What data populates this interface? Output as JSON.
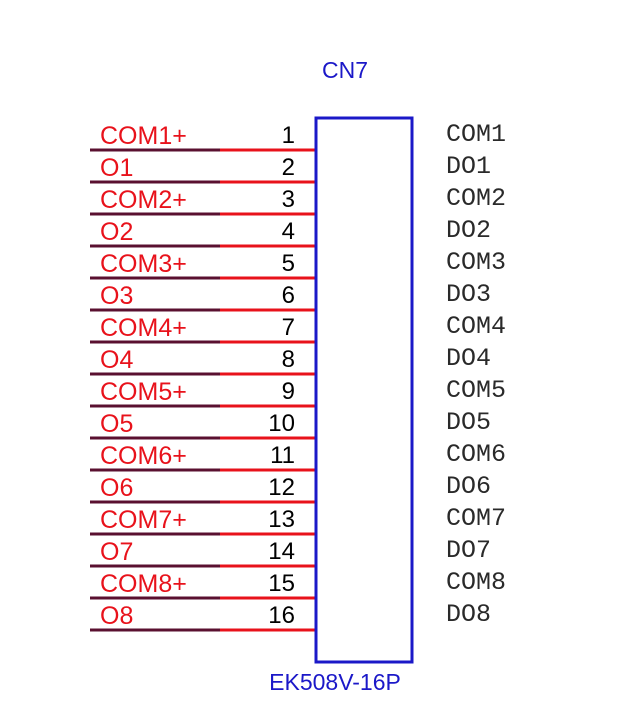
{
  "connector": {
    "designator": "CN7",
    "part_number": "EK508V-16P"
  },
  "colors": {
    "net_label": "#e8121b",
    "pin_number": "#000000",
    "pin_name": "#2a2a2a",
    "body_outline": "#1b18c8",
    "designator": "#1b18c8",
    "wire_dark": "#5a1030",
    "wire_red": "#e8121b"
  },
  "pins": [
    {
      "number": "1",
      "net": "COM1+",
      "name": "COM1"
    },
    {
      "number": "2",
      "net": "O1",
      "name": "DO1"
    },
    {
      "number": "3",
      "net": "COM2+",
      "name": "COM2"
    },
    {
      "number": "4",
      "net": "O2",
      "name": "DO2"
    },
    {
      "number": "5",
      "net": "COM3+",
      "name": "COM3"
    },
    {
      "number": "6",
      "net": "O3",
      "name": "DO3"
    },
    {
      "number": "7",
      "net": "COM4+",
      "name": "COM4"
    },
    {
      "number": "8",
      "net": "O4",
      "name": "DO4"
    },
    {
      "number": "9",
      "net": "COM5+",
      "name": "COM5"
    },
    {
      "number": "10",
      "net": "O5",
      "name": "DO5"
    },
    {
      "number": "11",
      "net": "COM6+",
      "name": "COM6"
    },
    {
      "number": "12",
      "net": "O6",
      "name": "DO6"
    },
    {
      "number": "13",
      "net": "COM7+",
      "name": "COM7"
    },
    {
      "number": "14",
      "net": "O7",
      "name": "DO7"
    },
    {
      "number": "15",
      "net": "COM8+",
      "name": "COM8"
    },
    {
      "number": "16",
      "net": "O8",
      "name": "DO8"
    }
  ]
}
